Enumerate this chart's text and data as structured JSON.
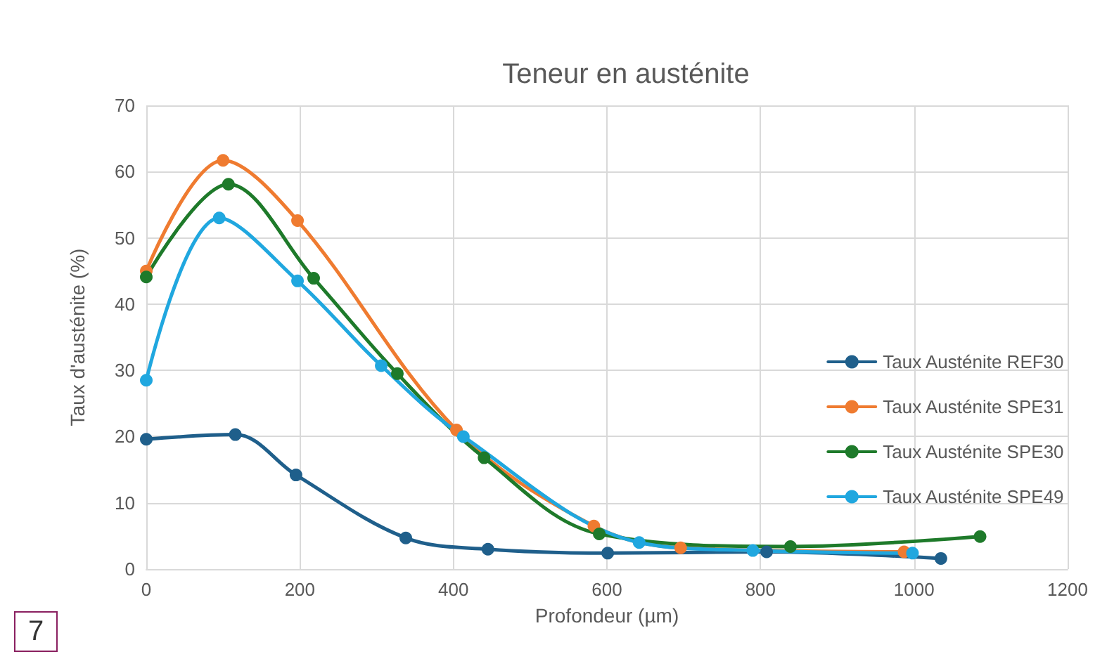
{
  "chart_data": {
    "type": "line",
    "title": "Teneur en austénite",
    "xlabel": "Profondeur (µm)",
    "ylabel": "Taux d'austénite (%)",
    "xlim": [
      0,
      1200
    ],
    "xticks": [
      0,
      200,
      400,
      600,
      800,
      1000,
      1200
    ],
    "ylim": [
      0,
      70
    ],
    "yticks": [
      0,
      10,
      20,
      30,
      40,
      50,
      60,
      70
    ],
    "grid": true,
    "legend": "right",
    "marker": "circle",
    "line_style": "solid",
    "annotations": [
      "7"
    ],
    "series": [
      {
        "name": "Taux Austénite REF30",
        "color": "#1f5f8b",
        "x": [
          0,
          116,
          195,
          338,
          445,
          601,
          808,
          1035
        ],
        "values": [
          19.6,
          20.3,
          14.2,
          4.7,
          3.0,
          2.4,
          2.6,
          1.6
        ]
      },
      {
        "name": "Taux Austénite SPE31",
        "color": "#ef7b30",
        "x": [
          0,
          100,
          197,
          404,
          583,
          696,
          987
        ],
        "values": [
          45.0,
          61.7,
          52.6,
          21.0,
          6.5,
          3.2,
          2.6
        ]
      },
      {
        "name": "Taux Austénite SPE30",
        "color": "#1e7a2a",
        "x": [
          0,
          107,
          218,
          327,
          440,
          590,
          839,
          1086
        ],
        "values": [
          44.1,
          58.1,
          43.9,
          29.5,
          16.8,
          5.3,
          3.4,
          4.9
        ]
      },
      {
        "name": "Taux Austénite SPE49",
        "color": "#20a7df",
        "x": [
          0,
          95,
          197,
          306,
          413,
          642,
          790,
          998
        ],
        "values": [
          28.5,
          53.0,
          43.5,
          30.7,
          20.0,
          4.0,
          2.8,
          2.4
        ]
      }
    ]
  }
}
